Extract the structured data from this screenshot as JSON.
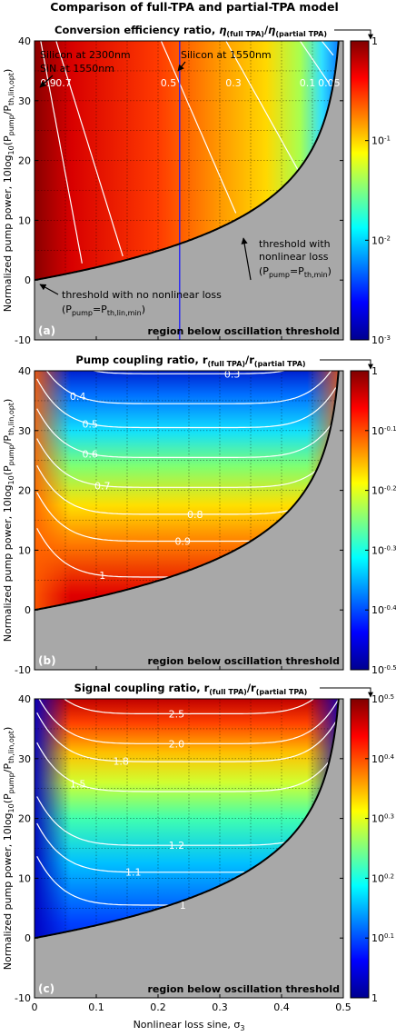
{
  "figure_title": "Comparison of full-TPA and partial-TPA model",
  "shared": {
    "ylabel": "Normalized pump power, 10log₁₀(P_pump/P_th,lin,opt)",
    "ylabel_main": "Normalized pump power, 10log",
    "ylabel_sub": "10",
    "ylabel_rest": "(P",
    "ylabel_pump": "pump",
    "ylabel_p2": "/P",
    "ylabel_th": "th,lin,opt",
    "ylabel_end": ")",
    "xlabel": "Nonlinear loss sine, σ",
    "xlabel_sub": "3",
    "xticks": [
      "0",
      "0.1",
      "0.2",
      "0.3",
      "0.4",
      "0.5"
    ],
    "yticks": [
      "-10",
      "0",
      "10",
      "20",
      "30",
      "40"
    ],
    "region_text": "region below oscillation threshold"
  },
  "chart_data": [
    {
      "type": "heatmap",
      "panel_label": "(a)",
      "title": "Conversion efficiency ratio, η(full TPA)/η(partial TPA)",
      "title_main": "Conversion efficiency ratio, ",
      "title_eta": "η",
      "title_sub1": "(full TPA)",
      "title_slash": "/",
      "title_eta2": "η",
      "title_sub2": "(partial TPA)",
      "x_range": [
        0,
        0.5
      ],
      "y_range": [
        -10,
        40
      ],
      "colorscale": "log",
      "colorbar_ticks": [
        "1",
        "10^-1",
        "10^-2",
        "10^-3"
      ],
      "contours": [
        {
          "level": "0.9",
          "x_at_y33": 0.01
        },
        {
          "level": "0.7",
          "x_at_y33": 0.035
        },
        {
          "level": "0.5",
          "x_at_y33": 0.205
        },
        {
          "level": "0.3",
          "x_at_y33": 0.31
        },
        {
          "level": "0.1",
          "x_at_y33": 0.43
        },
        {
          "level": "0.05",
          "x_at_y33": 0.465
        }
      ],
      "vline_x": 0.235,
      "annotations": {
        "si2300": "Silicon at 2300nm",
        "sin1550": "SiN at 1550nm",
        "si1550": "Silicon at 1550nm",
        "thr_nl_1": "threshold with",
        "thr_nl_2": "nonlinear loss",
        "thr_nl_3a": "(P",
        "thr_nl_3b": "pump",
        "thr_nl_3c": "=P",
        "thr_nl_3d": "th,min",
        "thr_nl_3e": ")",
        "thr_no_1": "threshold with no nonlinear loss",
        "thr_no_2a": "(P",
        "thr_no_2b": "pump",
        "thr_no_2c": "=P",
        "thr_no_2d": "th,lin,min",
        "thr_no_2e": ")"
      }
    },
    {
      "type": "heatmap",
      "panel_label": "(b)",
      "title": "Pump coupling ratio, r(full TPA)/r(partial TPA)",
      "title_main": "Pump coupling ratio, r",
      "title_sub1": "(full TPA)",
      "title_slash": "/r",
      "title_sub2": "(partial TPA)",
      "x_range": [
        0,
        0.5
      ],
      "y_range": [
        -10,
        40
      ],
      "colorscale": "log",
      "colorbar_ticks": [
        "1",
        "10^-0.1",
        "10^-0.2",
        "10^-0.3",
        "10^-0.4",
        "10^-0.5"
      ],
      "contours": [
        {
          "level": "0.3",
          "y_at_center": 39.5
        },
        {
          "level": "0.4",
          "y_at_center": 34.5
        },
        {
          "level": "0.5",
          "y_at_center": 30.5
        },
        {
          "level": "0.6",
          "y_at_center": 25.5
        },
        {
          "level": "0.7",
          "y_at_center": 20.5
        },
        {
          "level": "0.8",
          "y_at_center": 16
        },
        {
          "level": "0.9",
          "y_at_center": 11.5
        },
        {
          "level": "1",
          "y_at_center": 5.5
        }
      ]
    },
    {
      "type": "heatmap",
      "panel_label": "(c)",
      "title": "Signal coupling ratio, r(full TPA)/r(partial TPA)",
      "title_main": "Signal coupling ratio, r",
      "title_sub1": "(full TPA)",
      "title_slash": "/r",
      "title_sub2": "(partial TPA)",
      "x_range": [
        0,
        0.5
      ],
      "y_range": [
        -10,
        40
      ],
      "colorscale": "log",
      "colorbar_ticks": [
        "10^0.5",
        "10^0.4",
        "10^0.3",
        "10^0.2",
        "10^0.1",
        "1"
      ],
      "contours": [
        {
          "level": "2.5",
          "y_at_center": 37.5
        },
        {
          "level": "2.0",
          "y_at_center": 32.5
        },
        {
          "level": "1.8",
          "y_at_center": 29.5
        },
        {
          "level": "1.5",
          "y_at_center": 24.5
        },
        {
          "level": "1.2",
          "y_at_center": 15.5
        },
        {
          "level": "1.1",
          "y_at_center": 11
        },
        {
          "level": "1",
          "y_at_center": 5.5
        }
      ]
    }
  ]
}
